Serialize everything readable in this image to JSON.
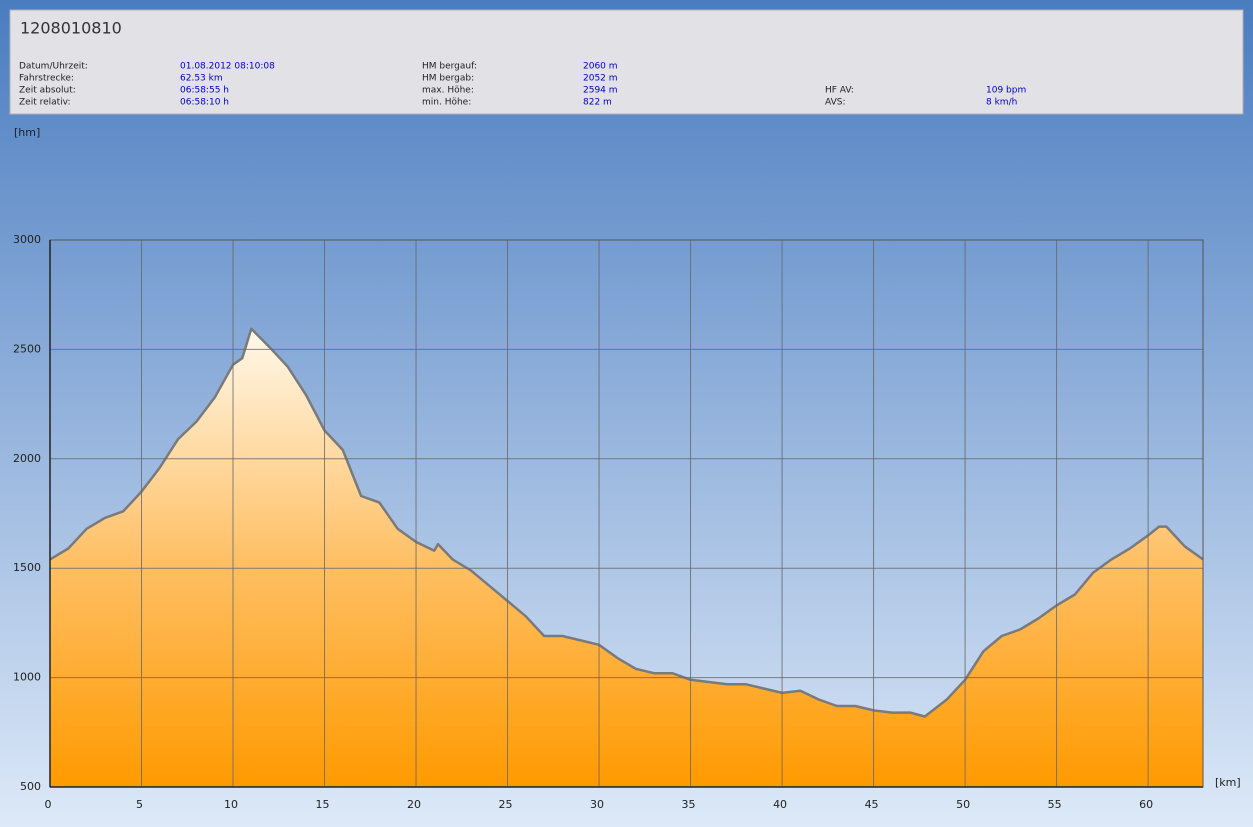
{
  "header": {
    "title": "1208010810",
    "fields": [
      {
        "label": "Datum/Uhrzeit:",
        "value": "01.08.2012 08:10:08"
      },
      {
        "label": "Fahrstrecke:",
        "value": "62.53 km"
      },
      {
        "label": "Zeit absolut:",
        "value": "06:58:55 h"
      },
      {
        "label": "Zeit relativ:",
        "value": "06:58:10 h"
      },
      {
        "label": "HM bergauf:",
        "value": "2060 m"
      },
      {
        "label": "HM bergab:",
        "value": "2052 m"
      },
      {
        "label": "max. Höhe:",
        "value": "2594 m"
      },
      {
        "label": "min. Höhe:",
        "value": "822 m"
      },
      {
        "label": "HF AV:",
        "value": "109 bpm"
      },
      {
        "label": "AVS:",
        "value": "8 km/h"
      }
    ]
  },
  "chart_data": {
    "type": "area",
    "y_label": "[hm]",
    "x_label": "[km]",
    "xlim": [
      0,
      63
    ],
    "xticks": [
      0,
      5,
      10,
      15,
      20,
      25,
      30,
      35,
      40,
      45,
      50,
      55,
      60
    ],
    "ylim": [
      500,
      3000
    ],
    "yticks": [
      500,
      1000,
      1500,
      2000,
      2500,
      3000
    ],
    "grid": true,
    "series": [
      {
        "color": "#7a7a7a",
        "x": [
          0,
          1,
          2,
          3,
          4,
          5,
          6,
          7,
          8,
          9,
          10,
          10.5,
          11,
          12,
          13,
          14,
          15,
          16,
          17,
          18,
          19,
          20,
          21,
          21.2,
          22,
          23,
          24,
          25,
          26,
          27,
          28,
          29,
          30,
          31,
          32,
          33,
          34,
          35,
          36,
          37,
          38,
          39,
          40,
          41,
          42,
          43,
          44,
          45,
          46,
          47,
          47.8,
          49,
          50,
          51,
          52,
          53,
          54,
          55,
          56,
          57,
          58,
          59,
          60,
          60.6,
          61,
          62,
          63
        ],
        "values": [
          1540,
          1590,
          1680,
          1730,
          1760,
          1850,
          1960,
          2090,
          2170,
          2280,
          2430,
          2460,
          2594,
          2510,
          2420,
          2290,
          2130,
          2040,
          1830,
          1800,
          1680,
          1620,
          1580,
          1610,
          1540,
          1490,
          1420,
          1350,
          1280,
          1190,
          1190,
          1170,
          1150,
          1090,
          1040,
          1020,
          1020,
          990,
          980,
          970,
          970,
          950,
          930,
          940,
          900,
          870,
          870,
          850,
          840,
          840,
          822,
          900,
          990,
          1120,
          1190,
          1220,
          1270,
          1330,
          1380,
          1480,
          1540,
          1590,
          1650,
          1690,
          1690,
          1600,
          1540
        ]
      }
    ]
  }
}
